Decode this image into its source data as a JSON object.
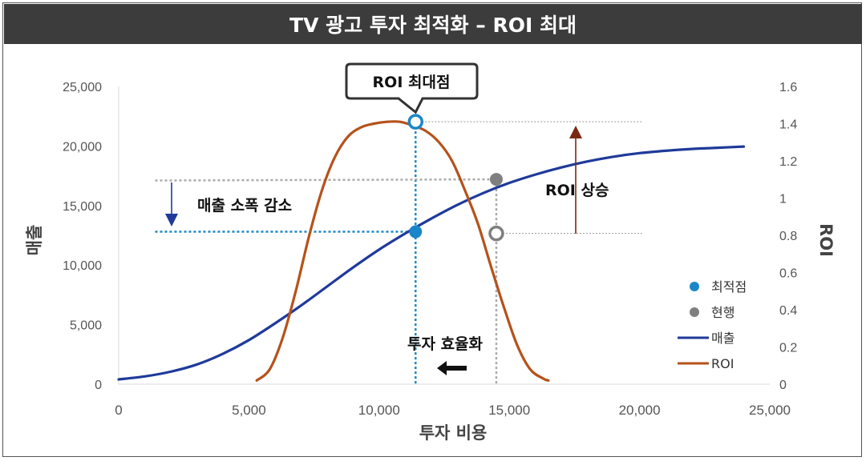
{
  "title": "TV 광고 투자 최적화 – ROI 최대",
  "chart_data": {
    "type": "line",
    "xlabel": "투자 비용",
    "ylabel": "매출",
    "y2label": "ROI",
    "xlim": [
      0,
      25000
    ],
    "ylim": [
      0,
      25000
    ],
    "y2lim": [
      0,
      1.6
    ],
    "x_ticks": [
      "0",
      "5,000",
      "10,000",
      "15,000",
      "20,000",
      "25,000"
    ],
    "y_ticks": [
      "0",
      "5,000",
      "10,000",
      "15,000",
      "20,000",
      "25,000"
    ],
    "y2_ticks": [
      "0",
      "0.2",
      "0.4",
      "0.6",
      "0.8",
      "1",
      "1.2",
      "1.4",
      "1.6"
    ],
    "grid": false,
    "legend_position": "right",
    "series": [
      {
        "name": "매출",
        "axis": "left",
        "color": "#1f3a9a",
        "x": [
          0,
          1000,
          2000,
          3000,
          4000,
          5000,
          6000,
          7000,
          8000,
          9000,
          10000,
          11000,
          12000,
          13000,
          14000,
          15000,
          16000,
          17000,
          18000,
          19000,
          20000,
          21000,
          22000,
          23000,
          24000
        ],
        "y": [
          400,
          650,
          1050,
          1650,
          2550,
          3700,
          5100,
          6600,
          8200,
          9800,
          11300,
          12650,
          13900,
          15050,
          16050,
          16900,
          17600,
          18200,
          18700,
          19100,
          19400,
          19600,
          19750,
          19850,
          19950
        ]
      },
      {
        "name": "ROI",
        "axis": "right",
        "color": "#b5521b",
        "x": [
          5300,
          5800,
          6300,
          6800,
          7300,
          7800,
          8300,
          8800,
          9300,
          9800,
          10300,
          10800,
          11300,
          11800,
          12300,
          12800,
          13300,
          13800,
          14300,
          14800,
          15300,
          15800,
          16300,
          16500
        ],
        "y": [
          0.02,
          0.08,
          0.25,
          0.5,
          0.79,
          1.04,
          1.22,
          1.33,
          1.38,
          1.4,
          1.41,
          1.41,
          1.39,
          1.36,
          1.3,
          1.2,
          1.04,
          0.86,
          0.63,
          0.41,
          0.21,
          0.08,
          0.03,
          0.02
        ]
      }
    ],
    "points": [
      {
        "name": "최적점",
        "x": 11400,
        "y": 12800,
        "axis": "left",
        "color": "#1a86c8",
        "style": "filled"
      },
      {
        "name": "최적점",
        "x": 11400,
        "y": 1.41,
        "axis": "right",
        "color": "#1a86c8",
        "style": "hollow"
      },
      {
        "name": "현행",
        "x": 14500,
        "y": 17200,
        "axis": "left",
        "color": "#7f7f7f",
        "style": "filled"
      },
      {
        "name": "현행",
        "x": 14500,
        "y": 0.81,
        "axis": "right",
        "color": "#7f7f7f",
        "style": "hollow"
      }
    ],
    "legend": [
      {
        "label": "최적점",
        "type": "dot",
        "color": "#1a86c8"
      },
      {
        "label": "현행",
        "type": "dot",
        "color": "#7f7f7f"
      },
      {
        "label": "매출",
        "type": "line",
        "color": "#1f3a9a"
      },
      {
        "label": "ROI",
        "type": "line",
        "color": "#b5521b"
      }
    ],
    "annotations": {
      "callout": "ROI 최대점",
      "sales_decrease": "매출 소폭 감소",
      "roi_increase": "ROI 상승",
      "efficiency": "투자 효율화"
    }
  }
}
